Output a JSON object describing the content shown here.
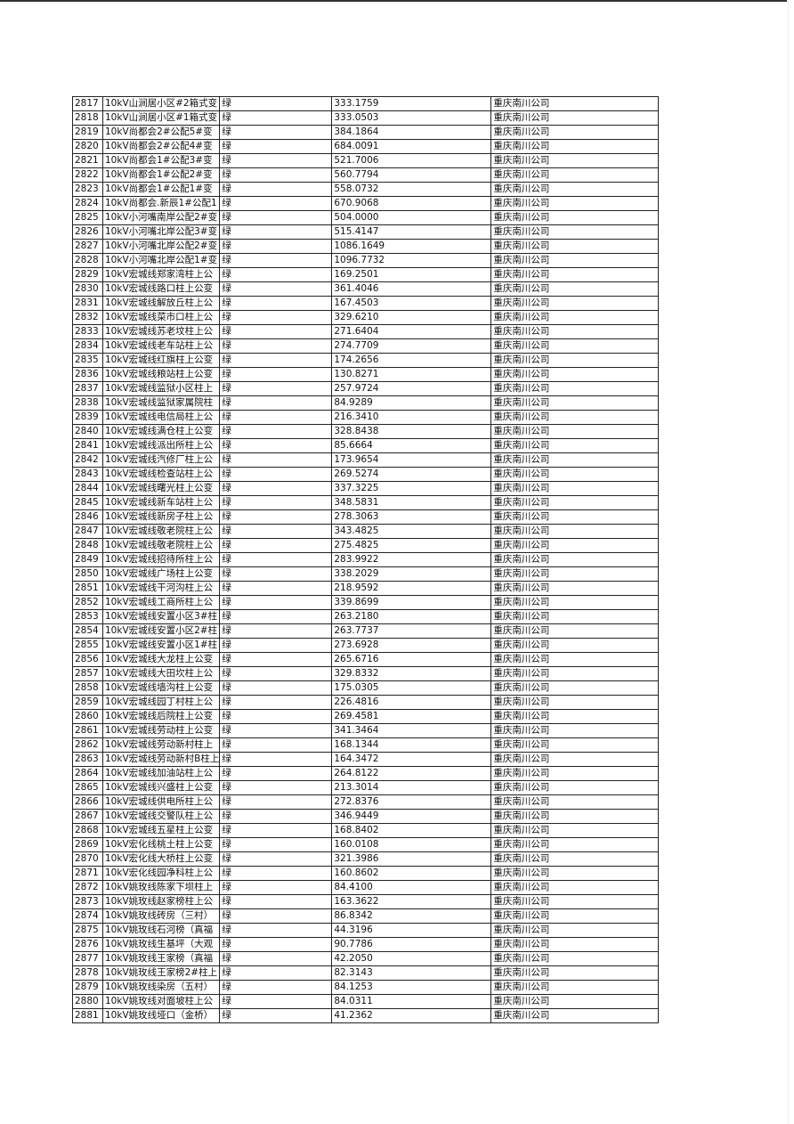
{
  "table": {
    "rows": [
      [
        "2817",
        "10kV山涧居小区#2箱式变",
        "绿",
        "333.1759",
        "重庆南川公司"
      ],
      [
        "2818",
        "10kV山涧居小区#1箱式变",
        "绿",
        "333.0503",
        "重庆南川公司"
      ],
      [
        "2819",
        "10kV尚都会2#公配5#变",
        "绿",
        "384.1864",
        "重庆南川公司"
      ],
      [
        "2820",
        "10kV尚都会2#公配4#变",
        "绿",
        "684.0091",
        "重庆南川公司"
      ],
      [
        "2821",
        "10kV尚都会1#公配3#变",
        "绿",
        "521.7006",
        "重庆南川公司"
      ],
      [
        "2822",
        "10kV尚都会1#公配2#变",
        "绿",
        "560.7794",
        "重庆南川公司"
      ],
      [
        "2823",
        "10kV尚都会1#公配1#变",
        "绿",
        "558.0732",
        "重庆南川公司"
      ],
      [
        "2824",
        "10kV尚都会.新辰1#公配1",
        "绿",
        "670.9068",
        "重庆南川公司"
      ],
      [
        "2825",
        "10kV小河嘴南岸公配2#变",
        "绿",
        "504.0000",
        "重庆南川公司"
      ],
      [
        "2826",
        "10kV小河嘴北岸公配3#变",
        "绿",
        "515.4147",
        "重庆南川公司"
      ],
      [
        "2827",
        "10kV小河嘴北岸公配2#变",
        "绿",
        "1086.1649",
        "重庆南川公司"
      ],
      [
        "2828",
        "10kV小河嘴北岸公配1#变",
        "绿",
        "1096.7732",
        "重庆南川公司"
      ],
      [
        "2829",
        "10kV宏城线郑家湾柱上公",
        "绿",
        "169.2501",
        "重庆南川公司"
      ],
      [
        "2830",
        "10kV宏城线路口柱上公变",
        "绿",
        "361.4046",
        "重庆南川公司"
      ],
      [
        "2831",
        "10kV宏城线解放丘柱上公",
        "绿",
        "167.4503",
        "重庆南川公司"
      ],
      [
        "2832",
        "10kV宏城线菜市口柱上公",
        "绿",
        "329.6210",
        "重庆南川公司"
      ],
      [
        "2833",
        "10kV宏城线苏老坟柱上公",
        "绿",
        "271.6404",
        "重庆南川公司"
      ],
      [
        "2834",
        "10kV宏城线老车站柱上公",
        "绿",
        "274.7709",
        "重庆南川公司"
      ],
      [
        "2835",
        "10kV宏城线红旗柱上公变",
        "绿",
        "174.2656",
        "重庆南川公司"
      ],
      [
        "2836",
        "10kV宏城线粮站柱上公变",
        "绿",
        "130.8271",
        "重庆南川公司"
      ],
      [
        "2837",
        "10kV宏城线监狱小区柱上",
        "绿",
        "257.9724",
        "重庆南川公司"
      ],
      [
        "2838",
        "10kV宏城线监狱家属院柱",
        "绿",
        "84.9289",
        "重庆南川公司"
      ],
      [
        "2839",
        "10kV宏城线电信局柱上公",
        "绿",
        "216.3410",
        "重庆南川公司"
      ],
      [
        "2840",
        "10kV宏城线满仓柱上公变",
        "绿",
        "328.8438",
        "重庆南川公司"
      ],
      [
        "2841",
        "10kV宏城线派出所柱上公",
        "绿",
        "85.6664",
        "重庆南川公司"
      ],
      [
        "2842",
        "10kV宏城线汽修厂柱上公",
        "绿",
        "173.9654",
        "重庆南川公司"
      ],
      [
        "2843",
        "10kV宏城线检查站柱上公",
        "绿",
        "269.5274",
        "重庆南川公司"
      ],
      [
        "2844",
        "10kV宏城线曙光柱上公变",
        "绿",
        "337.3225",
        "重庆南川公司"
      ],
      [
        "2845",
        "10kV宏城线新车站柱上公",
        "绿",
        "348.5831",
        "重庆南川公司"
      ],
      [
        "2846",
        "10kV宏城线新房子柱上公",
        "绿",
        "278.3063",
        "重庆南川公司"
      ],
      [
        "2847",
        "10kV宏城线敬老院柱上公",
        "绿",
        "343.4825",
        "重庆南川公司"
      ],
      [
        "2848",
        "10kV宏城线敬老院柱上公",
        "绿",
        "275.4825",
        "重庆南川公司"
      ],
      [
        "2849",
        "10kV宏城线招待所柱上公",
        "绿",
        "283.9922",
        "重庆南川公司"
      ],
      [
        "2850",
        "10kV宏城线广场柱上公变",
        "绿",
        "338.2029",
        "重庆南川公司"
      ],
      [
        "2851",
        "10kV宏城线干河沟柱上公",
        "绿",
        "218.9592",
        "重庆南川公司"
      ],
      [
        "2852",
        "10kV宏城线工商所柱上公",
        "绿",
        "339.8699",
        "重庆南川公司"
      ],
      [
        "2853",
        "10kV宏城线安置小区3#柱",
        "绿",
        "263.2180",
        "重庆南川公司"
      ],
      [
        "2854",
        "10kV宏城线安置小区2#柱",
        "绿",
        "263.7737",
        "重庆南川公司"
      ],
      [
        "2855",
        "10kV宏城线安置小区1#柱",
        "绿",
        "273.6928",
        "重庆南川公司"
      ],
      [
        "2856",
        "10kV宏城线大龙柱上公变",
        "绿",
        "265.6716",
        "重庆南川公司"
      ],
      [
        "2857",
        "10kV宏城线大田坎柱上公",
        "绿",
        "329.8332",
        "重庆南川公司"
      ],
      [
        "2858",
        "10kV宏城线墙沟柱上公变",
        "绿",
        "175.0305",
        "重庆南川公司"
      ],
      [
        "2859",
        "10kV宏城线园丁村柱上公",
        "绿",
        "226.4816",
        "重庆南川公司"
      ],
      [
        "2860",
        "10kV宏城线后院柱上公变",
        "绿",
        "269.4581",
        "重庆南川公司"
      ],
      [
        "2861",
        "10kV宏城线劳动柱上公变",
        "绿",
        "341.3464",
        "重庆南川公司"
      ],
      [
        "2862",
        "10kV宏城线劳动新村柱上",
        "绿",
        "168.1344",
        "重庆南川公司"
      ],
      [
        "2863",
        "10kV宏城线劳动新村B柱上",
        "绿",
        "164.3472",
        "重庆南川公司"
      ],
      [
        "2864",
        "10kV宏城线加油站柱上公",
        "绿",
        "264.8122",
        "重庆南川公司"
      ],
      [
        "2865",
        "10kV宏城线兴盛柱上公变",
        "绿",
        "213.3014",
        "重庆南川公司"
      ],
      [
        "2866",
        "10kV宏城线供电所柱上公",
        "绿",
        "272.8376",
        "重庆南川公司"
      ],
      [
        "2867",
        "10kV宏城线交警队柱上公",
        "绿",
        "346.9449",
        "重庆南川公司"
      ],
      [
        "2868",
        "10kV宏城线五星柱上公变",
        "绿",
        "168.8402",
        "重庆南川公司"
      ],
      [
        "2869",
        "10kV宏化线桃土柱上公变",
        "绿",
        "160.0108",
        "重庆南川公司"
      ],
      [
        "2870",
        "10kV宏化线大桥柱上公变",
        "绿",
        "321.3986",
        "重庆南川公司"
      ],
      [
        "2871",
        "10kV宏化线园净科柱上公",
        "绿",
        "160.8602",
        "重庆南川公司"
      ],
      [
        "2872",
        "10kV姚玫线陈家下坝柱上",
        "绿",
        "84.4100",
        "重庆南川公司"
      ],
      [
        "2873",
        "10kV姚玫线赵家榜柱上公",
        "绿",
        "163.3622",
        "重庆南川公司"
      ],
      [
        "2874",
        "10kV姚玫线砖房（三村）",
        "绿",
        "86.8342",
        "重庆南川公司"
      ],
      [
        "2875",
        "10kV姚玫线石河榜（真福",
        "绿",
        "44.3196",
        "重庆南川公司"
      ],
      [
        "2876",
        "10kV姚玫线生基坪（大观",
        "绿",
        "90.7786",
        "重庆南川公司"
      ],
      [
        "2877",
        "10kV姚玫线王家榜（真福",
        "绿",
        "42.2050",
        "重庆南川公司"
      ],
      [
        "2878",
        "10kV姚玫线王家榜2#柱上",
        "绿",
        "82.3143",
        "重庆南川公司"
      ],
      [
        "2879",
        "10kV姚玫线染房（五村）",
        "绿",
        "84.1253",
        "重庆南川公司"
      ],
      [
        "2880",
        "10kV姚玫线对面坡柱上公",
        "绿",
        "84.0311",
        "重庆南川公司"
      ],
      [
        "2881",
        "10kV姚玫线垭口（金桥）",
        "绿",
        "41.2362",
        "重庆南川公司"
      ]
    ]
  }
}
